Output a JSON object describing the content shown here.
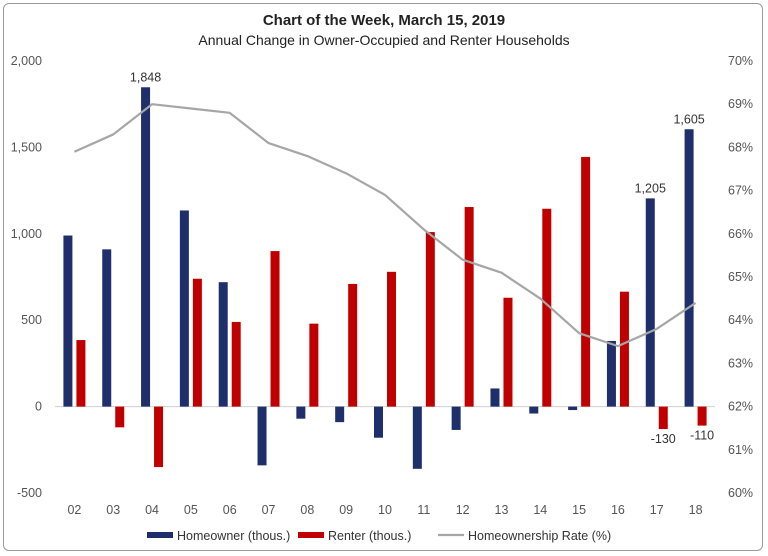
{
  "chart_data": {
    "type": "bar",
    "title": "Chart of the Week, March 15, 2019",
    "subtitle": "Annual Change in Owner-Occupied and Renter Households",
    "categories": [
      "02",
      "03",
      "04",
      "05",
      "06",
      "07",
      "08",
      "09",
      "10",
      "11",
      "12",
      "13",
      "14",
      "15",
      "16",
      "17",
      "18"
    ],
    "series": [
      {
        "name": "Homeowner (thous.)",
        "type": "bar",
        "axis": "left",
        "color": "#1f2f6b",
        "values": [
          990,
          910,
          1848,
          1135,
          720,
          -340,
          -70,
          -90,
          -180,
          -360,
          -135,
          105,
          -40,
          -20,
          380,
          1205,
          1605
        ]
      },
      {
        "name": "Renter (thous.)",
        "type": "bar",
        "axis": "left",
        "color": "#c00000",
        "values": [
          385,
          -120,
          -350,
          740,
          490,
          900,
          480,
          710,
          780,
          1010,
          1155,
          630,
          1145,
          1445,
          665,
          -130,
          -110
        ]
      },
      {
        "name": "Homeownership Rate (%)",
        "type": "line",
        "axis": "right",
        "color": "#a6a6a6",
        "values": [
          67.9,
          68.3,
          69.0,
          68.9,
          68.8,
          68.1,
          67.8,
          67.4,
          66.9,
          66.1,
          65.4,
          65.1,
          64.5,
          63.7,
          63.4,
          63.8,
          64.4
        ]
      }
    ],
    "data_labels": [
      {
        "series": 0,
        "index": 2,
        "text": "1,848"
      },
      {
        "series": 0,
        "index": 15,
        "text": "1,205"
      },
      {
        "series": 0,
        "index": 16,
        "text": "1,605"
      },
      {
        "series": 1,
        "index": 15,
        "text": "-130"
      },
      {
        "series": 1,
        "index": 16,
        "text": "-110"
      }
    ],
    "ylim": [
      -500,
      2000
    ],
    "yticks": [
      -500,
      0,
      500,
      1000,
      1500,
      2000
    ],
    "ytick_labels": [
      "-500",
      "0",
      "500",
      "1,000",
      "1,500",
      "2,000"
    ],
    "y2lim": [
      60,
      70
    ],
    "y2ticks": [
      60,
      61,
      62,
      63,
      64,
      65,
      66,
      67,
      68,
      69,
      70
    ],
    "y2tick_labels": [
      "60%",
      "61%",
      "62%",
      "63%",
      "64%",
      "65%",
      "66%",
      "67%",
      "68%",
      "69%",
      "70%"
    ],
    "grid": false,
    "legend": "bottom"
  }
}
